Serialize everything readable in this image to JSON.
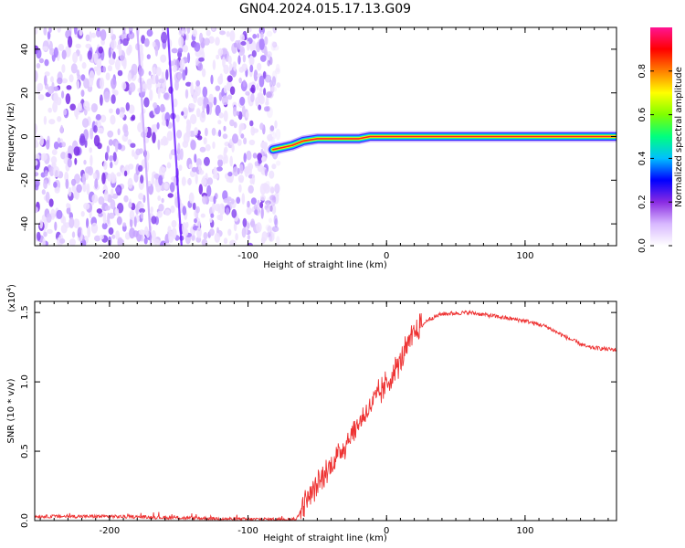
{
  "figure": {
    "title": "GN04.2024.015.17.13.G09"
  },
  "chart_data": [
    {
      "type": "heatmap",
      "xlabel": "Height of straight line (km)",
      "ylabel": "Frequency (Hz)",
      "xlim": [
        -254,
        166
      ],
      "ylim": [
        -50,
        50
      ],
      "xticks": [
        -200,
        -100,
        0,
        100
      ],
      "xtick_labels": [
        "-200",
        "-100",
        "0",
        "100"
      ],
      "yticks": [
        -40,
        -20,
        0,
        20,
        40
      ],
      "ytick_labels": [
        "-40",
        "-20",
        "0",
        "20",
        "40"
      ],
      "noise_region_x": [
        -254,
        -78
      ],
      "carrier_track": [
        {
          "x": -82,
          "y": -6
        },
        {
          "x": -75,
          "y": -5
        },
        {
          "x": -68,
          "y": -4
        },
        {
          "x": -60,
          "y": -2
        },
        {
          "x": -50,
          "y": -1
        },
        {
          "x": -40,
          "y": -1
        },
        {
          "x": -30,
          "y": -1
        },
        {
          "x": -20,
          "y": -1
        },
        {
          "x": -12,
          "y": 0
        },
        {
          "x": 0,
          "y": 0
        },
        {
          "x": 40,
          "y": 0
        },
        {
          "x": 100,
          "y": 0
        },
        {
          "x": 166,
          "y": 0
        }
      ],
      "colorbar": {
        "label": "Normalized spectral amplitude",
        "range": [
          0,
          1
        ],
        "ticks": [
          0.0,
          0.2,
          0.4,
          0.6,
          0.8
        ],
        "tick_labels": [
          "0.0",
          "0.2",
          "0.4",
          "0.6",
          "0.8"
        ],
        "colors": [
          "#ffffff",
          "#d8b8ff",
          "#8a2be2",
          "#0000ff",
          "#00bfff",
          "#00ff7f",
          "#7fff00",
          "#ffff00",
          "#ff7f00",
          "#ff0000",
          "#ff1493"
        ]
      },
      "grid": false
    },
    {
      "type": "line",
      "xlabel": "Height of straight line (km)",
      "ylabel": "SNR (10 * v/v)",
      "yscale_label": "(x10",
      "yscale_exponent": "4",
      "xlim": [
        -254,
        166
      ],
      "ylim": [
        0,
        1.58
      ],
      "xticks": [
        -200,
        -100,
        0,
        100
      ],
      "xtick_labels": [
        "-200",
        "-100",
        "0",
        "100"
      ],
      "yticks": [
        0.0,
        0.5,
        1.0,
        1.5
      ],
      "ytick_labels": [
        "0.0",
        "0.5",
        "1.0",
        "1.5"
      ],
      "color": "#ee3333",
      "series_envelope": [
        {
          "x": -254,
          "y": 0.03
        },
        {
          "x": -200,
          "y": 0.03
        },
        {
          "x": -150,
          "y": 0.02
        },
        {
          "x": -100,
          "y": 0.01
        },
        {
          "x": -65,
          "y": 0.01
        },
        {
          "x": -60,
          "y": 0.12
        },
        {
          "x": -50,
          "y": 0.25
        },
        {
          "x": -40,
          "y": 0.4
        },
        {
          "x": -30,
          "y": 0.55
        },
        {
          "x": -20,
          "y": 0.7
        },
        {
          "x": -10,
          "y": 0.85
        },
        {
          "x": 0,
          "y": 0.98
        },
        {
          "x": 10,
          "y": 1.15
        },
        {
          "x": 20,
          "y": 1.35
        },
        {
          "x": 30,
          "y": 1.45
        },
        {
          "x": 40,
          "y": 1.49
        },
        {
          "x": 60,
          "y": 1.5
        },
        {
          "x": 80,
          "y": 1.47
        },
        {
          "x": 100,
          "y": 1.44
        },
        {
          "x": 115,
          "y": 1.4
        },
        {
          "x": 130,
          "y": 1.32
        },
        {
          "x": 145,
          "y": 1.25
        },
        {
          "x": 166,
          "y": 1.23
        }
      ],
      "grid": false
    }
  ]
}
